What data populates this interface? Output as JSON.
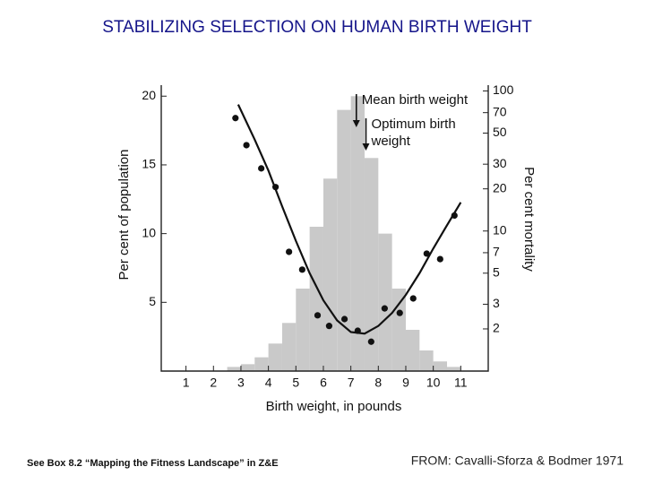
{
  "chart_data": {
    "type": "histogram",
    "title": "STABILIZING SELECTION ON HUMAN BIRTH WEIGHT",
    "x_label": "Birth weight, in pounds",
    "y_label": "Per cent of population",
    "y2_label": "Per cent mortality",
    "bins": [
      2.5,
      3,
      3.5,
      4,
      4.5,
      5,
      5.5,
      6,
      6.5,
      7,
      7.5,
      8,
      8.5,
      9,
      9.5,
      10,
      10.5,
      11
    ],
    "counts": [
      0.3,
      0.5,
      1,
      2,
      3.5,
      6,
      10.5,
      14,
      19,
      20,
      15.5,
      10,
      6,
      3,
      1.5,
      0.7,
      0.3
    ],
    "color": "#c9c9c9",
    "series": [
      {
        "type": "scatter",
        "axis": "y2",
        "color": "#111111",
        "x": [
          2.8,
          3.2,
          3.74,
          4.26,
          4.75,
          5.23,
          5.79,
          6.21,
          6.77,
          7.25,
          7.74,
          8.23,
          8.78,
          9.27,
          9.76,
          10.25,
          10.77
        ],
        "values": [
          64,
          41,
          28,
          20.6,
          7.1,
          5.3,
          2.5,
          2.1,
          2.35,
          1.94,
          1.62,
          2.8,
          2.6,
          3.3,
          6.9,
          6.3,
          12.9
        ]
      },
      {
        "type": "line",
        "axis": "y2",
        "color": "#111111",
        "x": [
          2.9,
          3.5,
          4,
          4.5,
          5,
          5.5,
          6,
          6.5,
          7,
          7.5,
          8,
          8.5,
          9,
          9.5,
          10,
          10.5,
          11
        ],
        "values": [
          80,
          45,
          27,
          15,
          8.5,
          5,
          3.2,
          2.3,
          1.9,
          1.85,
          2.1,
          2.6,
          3.5,
          5,
          7.5,
          11,
          16
        ]
      }
    ],
    "xlim": [
      0.1,
      12
    ],
    "xticks": [
      1,
      2,
      3,
      4,
      5,
      6,
      7,
      8,
      9,
      10,
      11
    ],
    "ylim": [
      0,
      20.8
    ],
    "yticks": [
      5,
      10,
      15,
      20
    ],
    "y2lim": [
      1,
      110
    ],
    "y2ticks": [
      2,
      3,
      5,
      7,
      10,
      20,
      30,
      50,
      70,
      100
    ],
    "y2_log": true,
    "annotations": [
      {
        "x": 7.2,
        "lines": [
          "Mean birth weight"
        ]
      },
      {
        "x": 7.55,
        "lines": [
          "Optimum birth",
          "weight"
        ]
      }
    ]
  },
  "footer": {
    "left": "See Box 8.2 “Mapping the Fitness Landscape” in Z&E",
    "right": "FROM: Cavalli-Sforza & Bodmer 1971"
  }
}
